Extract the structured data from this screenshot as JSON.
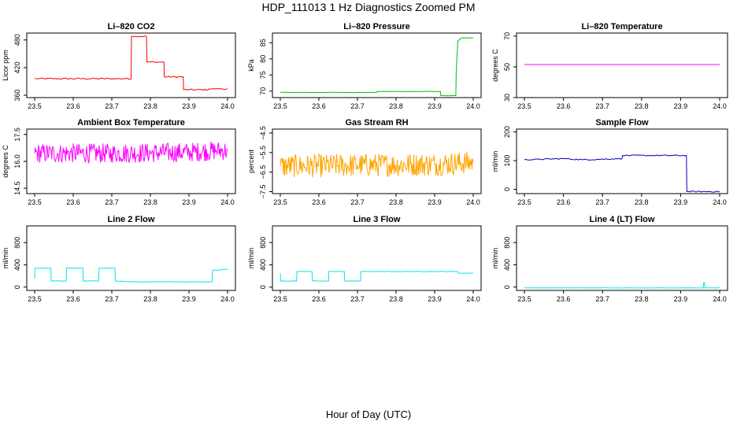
{
  "figure": {
    "title": "HDP_111013  1 Hz Diagnostics Zoomed PM",
    "xlabel": "Hour of Day (UTC)"
  },
  "chart_data": [
    {
      "type": "line",
      "title": "Li–820 CO2",
      "ylabel": "Licor ppm",
      "xlim": [
        23.5,
        24.0
      ],
      "ylim": [
        355,
        495
      ],
      "xticks": [
        "23.5",
        "23.6",
        "23.7",
        "23.8",
        "23.9",
        "24.0"
      ],
      "yticks": [
        {
          "value": 360,
          "label": "360"
        },
        {
          "value": 420,
          "label": "420"
        },
        {
          "value": 480,
          "label": "480"
        }
      ],
      "color": "#ff0000",
      "noise": 1.5,
      "series": [
        {
          "x": [
            23.5,
            23.75,
            23.751,
            23.79,
            23.791,
            23.835,
            23.836,
            23.885,
            23.886,
            23.95,
            23.951,
            24.0
          ],
          "y": [
            396,
            396,
            488,
            488,
            432,
            432,
            400,
            400,
            372,
            372,
            374,
            374
          ]
        }
      ]
    },
    {
      "type": "line",
      "title": "Li–820 Pressure",
      "ylabel": "kPa",
      "xlim": [
        23.5,
        24.0
      ],
      "ylim": [
        68,
        88
      ],
      "xticks": [
        "23.5",
        "23.6",
        "23.7",
        "23.8",
        "23.9",
        "24.0"
      ],
      "yticks": [
        {
          "value": 70,
          "label": "70"
        },
        {
          "value": 75,
          "label": "75"
        },
        {
          "value": 80,
          "label": "80"
        },
        {
          "value": 85,
          "label": "85"
        }
      ],
      "color": "#00c000",
      "noise": 0.05,
      "series": [
        {
          "x": [
            23.5,
            23.75,
            23.751,
            23.915,
            23.916,
            23.955,
            23.956,
            23.96,
            23.97,
            24.0
          ],
          "y": [
            69.6,
            69.6,
            69.9,
            69.9,
            68.6,
            68.6,
            76,
            85.5,
            86.5,
            86.5
          ]
        }
      ]
    },
    {
      "type": "line",
      "title": "Li–820 Temperature",
      "ylabel": "degrees C",
      "xlim": [
        23.5,
        24.0
      ],
      "ylim": [
        30,
        72
      ],
      "xticks": [
        "23.5",
        "23.6",
        "23.7",
        "23.8",
        "23.9",
        "24.0"
      ],
      "yticks": [
        {
          "value": 30,
          "label": "30"
        },
        {
          "value": 50,
          "label": "50"
        },
        {
          "value": 70,
          "label": "70"
        }
      ],
      "color": "#ff00ff",
      "noise": 0,
      "series": [
        {
          "x": [
            23.5,
            24.0
          ],
          "y": [
            51.5,
            51.5
          ]
        }
      ]
    },
    {
      "type": "line",
      "title": "Ambient Box Temperature",
      "ylabel": "degrees C",
      "xlim": [
        23.5,
        24.0
      ],
      "ylim": [
        14.2,
        17.8
      ],
      "xticks": [
        "23.5",
        "23.6",
        "23.7",
        "23.8",
        "23.9",
        "24.0"
      ],
      "yticks": [
        {
          "value": 14.5,
          "label": "14.5"
        },
        {
          "value": 16.0,
          "label": "16.0"
        },
        {
          "value": 17.5,
          "label": "17.5"
        }
      ],
      "color": "#ff00ff",
      "noise": 0.55,
      "series": [
        {
          "x": [
            23.5,
            23.7,
            23.9,
            23.97,
            24.0
          ],
          "y": [
            16.45,
            16.45,
            16.5,
            16.6,
            16.6
          ]
        }
      ]
    },
    {
      "type": "line",
      "title": "Gas Stream RH",
      "ylabel": "percent",
      "xlim": [
        23.5,
        24.0
      ],
      "ylim": [
        -7.6,
        -4.3
      ],
      "xticks": [
        "23.5",
        "23.6",
        "23.7",
        "23.8",
        "23.9",
        "24.0"
      ],
      "yticks": [
        {
          "value": -7.5,
          "label": "−7.5"
        },
        {
          "value": -6.5,
          "label": "−6.5"
        },
        {
          "value": -5.5,
          "label": "−5.5"
        },
        {
          "value": -4.5,
          "label": "−4.5"
        }
      ],
      "color": "#ffa500",
      "noise": 0.6,
      "series": [
        {
          "x": [
            23.5,
            23.7,
            23.9,
            24.0
          ],
          "y": [
            -6.2,
            -6.15,
            -6.1,
            -6.0
          ]
        }
      ]
    },
    {
      "type": "line",
      "title": "Sample Flow",
      "ylabel": "ml/min",
      "xlim": [
        23.5,
        24.0
      ],
      "ylim": [
        -15,
        210
      ],
      "xticks": [
        "23.5",
        "23.6",
        "23.7",
        "23.8",
        "23.9",
        "24.0"
      ],
      "yticks": [
        {
          "value": 0,
          "label": "0"
        },
        {
          "value": 100,
          "label": "100"
        },
        {
          "value": 200,
          "label": "200"
        }
      ],
      "color": "#0000c0",
      "noise": 2,
      "series": [
        {
          "x": [
            23.5,
            23.6,
            23.65,
            23.75,
            23.751,
            23.915,
            23.916,
            24.0
          ],
          "y": [
            103,
            107,
            103,
            107,
            118,
            118,
            -8,
            -8
          ]
        }
      ]
    },
    {
      "type": "line",
      "title": "Line 2 Flow",
      "ylabel": "ml/min",
      "xlim": [
        23.5,
        24.0
      ],
      "ylim": [
        -60,
        1100
      ],
      "xticks": [
        "23.5",
        "23.6",
        "23.7",
        "23.8",
        "23.9",
        "24.0"
      ],
      "yticks": [
        {
          "value": 0,
          "label": "0"
        },
        {
          "value": 400,
          "label": "400"
        },
        {
          "value": 800,
          "label": "800"
        }
      ],
      "color": "#00e5ee",
      "noise": 4,
      "series": [
        {
          "x": [
            23.5,
            23.501,
            23.542,
            23.543,
            23.582,
            23.583,
            23.625,
            23.626,
            23.666,
            23.667,
            23.708,
            23.709,
            23.75,
            23.9,
            23.96,
            23.961,
            24.0
          ],
          "y": [
            150,
            340,
            340,
            110,
            110,
            340,
            340,
            110,
            110,
            340,
            340,
            110,
            95,
            95,
            95,
            300,
            320
          ]
        }
      ]
    },
    {
      "type": "line",
      "title": "Line 3 Flow",
      "ylabel": "ml/min",
      "xlim": [
        23.5,
        24.0
      ],
      "ylim": [
        -60,
        1100
      ],
      "xticks": [
        "23.5",
        "23.6",
        "23.7",
        "23.8",
        "23.9",
        "24.0"
      ],
      "yticks": [
        {
          "value": 0,
          "label": "0"
        },
        {
          "value": 400,
          "label": "400"
        },
        {
          "value": 800,
          "label": "800"
        }
      ],
      "color": "#00e5ee",
      "noise": 4,
      "series": [
        {
          "x": [
            23.5,
            23.501,
            23.542,
            23.543,
            23.582,
            23.583,
            23.625,
            23.626,
            23.666,
            23.667,
            23.708,
            23.709,
            23.9,
            23.96,
            23.961,
            24.0
          ],
          "y": [
            250,
            110,
            110,
            280,
            280,
            110,
            110,
            280,
            280,
            110,
            110,
            280,
            280,
            280,
            250,
            250
          ]
        }
      ]
    },
    {
      "type": "line",
      "title": "Line 4 (LT) Flow",
      "ylabel": "ml/min",
      "xlim": [
        23.5,
        24.0
      ],
      "ylim": [
        -60,
        1100
      ],
      "xticks": [
        "23.5",
        "23.6",
        "23.7",
        "23.8",
        "23.9",
        "24.0"
      ],
      "yticks": [
        {
          "value": 0,
          "label": "0"
        },
        {
          "value": 400,
          "label": "400"
        },
        {
          "value": 800,
          "label": "800"
        }
      ],
      "color": "#00e5ee",
      "noise": 2,
      "series": [
        {
          "x": [
            23.5,
            23.958,
            23.959,
            23.961,
            23.962,
            24.0
          ],
          "y": [
            -15,
            -15,
            80,
            80,
            -15,
            -15
          ]
        }
      ]
    }
  ]
}
